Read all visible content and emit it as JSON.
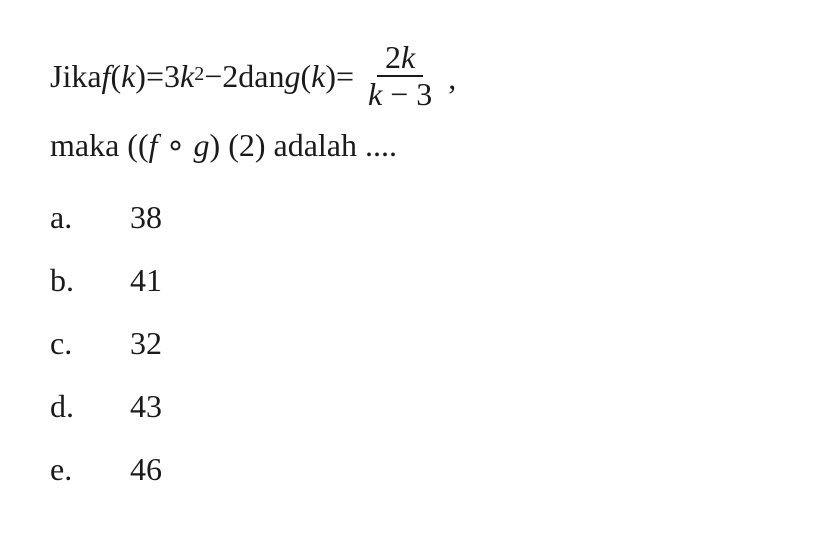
{
  "question": {
    "line1_part1": "Jika ",
    "f_label": "f",
    "open_paren": "(",
    "var_k": "k",
    "close_paren": ")",
    "equals": " = ",
    "coeff_3": "3",
    "exp_2": "2",
    "minus_sign": " − ",
    "const_2": "2",
    "dan_text": " dan ",
    "g_label": "g",
    "frac_num_coeff": "2",
    "frac_num_var": "k",
    "frac_denom_var": "k",
    "frac_denom_minus": " − ",
    "frac_denom_const": "3",
    "comma": ",",
    "line2_part1": "maka ((",
    "compose": " ∘ ",
    "line2_part2": ") (2) adalah ....",
    "options": [
      {
        "letter": "a.",
        "value": "38"
      },
      {
        "letter": "b.",
        "value": "41"
      },
      {
        "letter": "c.",
        "value": "32"
      },
      {
        "letter": "d.",
        "value": "43"
      },
      {
        "letter": "e.",
        "value": "46"
      }
    ]
  },
  "style": {
    "font_size_main": 32,
    "font_size_sup": 20,
    "text_color": "#1a1a1a",
    "background_color": "#ffffff"
  }
}
